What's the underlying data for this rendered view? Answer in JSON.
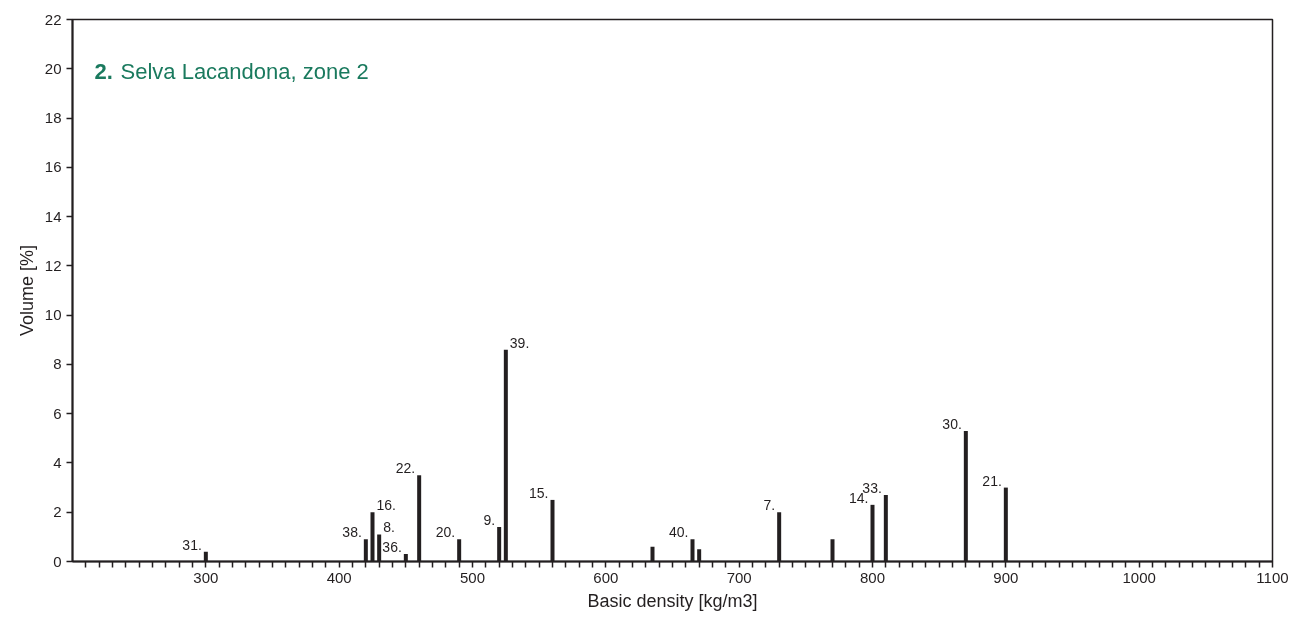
{
  "chart_data": {
    "type": "bar",
    "title": "2. Selva Lacandona, zone 2",
    "xlabel": "Basic density [kg/m3]",
    "ylabel": "Volume [%]",
    "x": [
      300,
      420,
      425,
      430,
      450,
      460,
      490,
      520,
      525,
      560,
      635,
      665,
      670,
      730,
      770,
      800,
      810,
      870,
      900
    ],
    "values": [
      0.4,
      0.9,
      2.0,
      1.1,
      0.3,
      3.5,
      0.9,
      1.4,
      8.6,
      2.5,
      0.6,
      0.9,
      0.5,
      2.0,
      0.9,
      2.3,
      2.7,
      5.3,
      3.0
    ],
    "color": "#231f20",
    "xlim": [
      200,
      1100
    ],
    "ylim": [
      0,
      22
    ],
    "yticks": [
      0,
      2,
      4,
      6,
      8,
      10,
      12,
      14,
      16,
      18,
      20,
      22
    ],
    "xticks": [
      {
        "value": 210,
        "label": null
      },
      {
        "value": 220,
        "label": null
      },
      {
        "value": 230,
        "label": null
      },
      {
        "value": 240,
        "label": null
      },
      {
        "value": 250,
        "label": null
      },
      {
        "value": 260,
        "label": null
      },
      {
        "value": 270,
        "label": null
      },
      {
        "value": 280,
        "label": null
      },
      {
        "value": 290,
        "label": null
      },
      300,
      {
        "value": 310,
        "label": null
      },
      {
        "value": 320,
        "label": null
      },
      {
        "value": 330,
        "label": null
      },
      {
        "value": 340,
        "label": null
      },
      {
        "value": 350,
        "label": null
      },
      {
        "value": 360,
        "label": null
      },
      {
        "value": 370,
        "label": null
      },
      {
        "value": 380,
        "label": null
      },
      {
        "value": 390,
        "label": null
      },
      400,
      {
        "value": 410,
        "label": null
      },
      {
        "value": 420,
        "label": null
      },
      {
        "value": 430,
        "label": null
      },
      {
        "value": 440,
        "label": null
      },
      {
        "value": 450,
        "label": null
      },
      {
        "value": 460,
        "label": null
      },
      {
        "value": 470,
        "label": null
      },
      {
        "value": 480,
        "label": null
      },
      {
        "value": 490,
        "label": null
      },
      500,
      {
        "value": 510,
        "label": null
      },
      {
        "value": 520,
        "label": null
      },
      {
        "value": 530,
        "label": null
      },
      {
        "value": 540,
        "label": null
      },
      {
        "value": 550,
        "label": null
      },
      {
        "value": 560,
        "label": null
      },
      {
        "value": 570,
        "label": null
      },
      {
        "value": 580,
        "label": null
      },
      {
        "value": 590,
        "label": null
      },
      600,
      {
        "value": 610,
        "label": null
      },
      {
        "value": 620,
        "label": null
      },
      {
        "value": 630,
        "label": null
      },
      {
        "value": 640,
        "label": null
      },
      {
        "value": 650,
        "label": null
      },
      {
        "value": 660,
        "label": null
      },
      {
        "value": 670,
        "label": null
      },
      {
        "value": 680,
        "label": null
      },
      {
        "value": 690,
        "label": null
      },
      700,
      {
        "value": 710,
        "label": null
      },
      {
        "value": 720,
        "label": null
      },
      {
        "value": 730,
        "label": null
      },
      {
        "value": 740,
        "label": null
      },
      {
        "value": 750,
        "label": null
      },
      {
        "value": 760,
        "label": null
      },
      {
        "value": 770,
        "label": null
      },
      {
        "value": 780,
        "label": null
      },
      {
        "value": 790,
        "label": null
      },
      800,
      {
        "value": 810,
        "label": null
      },
      {
        "value": 820,
        "label": null
      },
      {
        "value": 830,
        "label": null
      },
      {
        "value": 840,
        "label": null
      },
      {
        "value": 850,
        "label": null
      },
      {
        "value": 860,
        "label": null
      },
      {
        "value": 870,
        "label": null
      },
      {
        "value": 880,
        "label": null
      },
      {
        "value": 890,
        "label": null
      },
      900,
      {
        "value": 910,
        "label": null
      },
      {
        "value": 920,
        "label": null
      },
      {
        "value": 930,
        "label": null
      },
      {
        "value": 940,
        "label": null
      },
      {
        "value": 950,
        "label": null
      },
      {
        "value": 960,
        "label": null
      },
      {
        "value": 970,
        "label": null
      },
      {
        "value": 980,
        "label": null
      },
      {
        "value": 990,
        "label": null
      },
      1000,
      {
        "value": 1010,
        "label": null
      },
      {
        "value": 1020,
        "label": null
      },
      {
        "value": 1030,
        "label": null
      },
      {
        "value": 1040,
        "label": null
      },
      {
        "value": 1050,
        "label": null
      },
      {
        "value": 1060,
        "label": null
      },
      {
        "value": 1070,
        "label": null
      },
      {
        "value": 1080,
        "label": null
      },
      {
        "value": 1090,
        "label": null
      },
      1100
    ],
    "grid": false,
    "annotations": [
      {
        "text": "31.",
        "x": 300,
        "y": 0.4
      },
      {
        "text": "38.",
        "x": 420,
        "y": 0.9
      },
      {
        "text": "16.",
        "x": 425,
        "y": 2.0
      },
      {
        "text": "8.",
        "x": 430,
        "y": 1.1
      },
      {
        "text": "36.",
        "x": 450,
        "y": 0.3
      },
      {
        "text": "22.",
        "x": 460,
        "y": 3.5
      },
      {
        "text": "20.",
        "x": 490,
        "y": 0.9
      },
      {
        "text": "9.",
        "x": 520,
        "y": 1.4
      },
      {
        "text": "39.",
        "x": 525,
        "y": 8.6
      },
      {
        "text": "15.",
        "x": 560,
        "y": 2.5
      },
      {
        "text": "40.",
        "x": 665,
        "y": 0.9
      },
      {
        "text": "7.",
        "x": 730,
        "y": 2.0
      },
      {
        "text": "14.",
        "x": 800,
        "y": 2.3
      },
      {
        "text": "33.",
        "x": 810,
        "y": 2.7
      },
      {
        "text": "30.",
        "x": 870,
        "y": 5.3
      },
      {
        "text": "21.",
        "x": 900,
        "y": 3.0
      }
    ]
  }
}
